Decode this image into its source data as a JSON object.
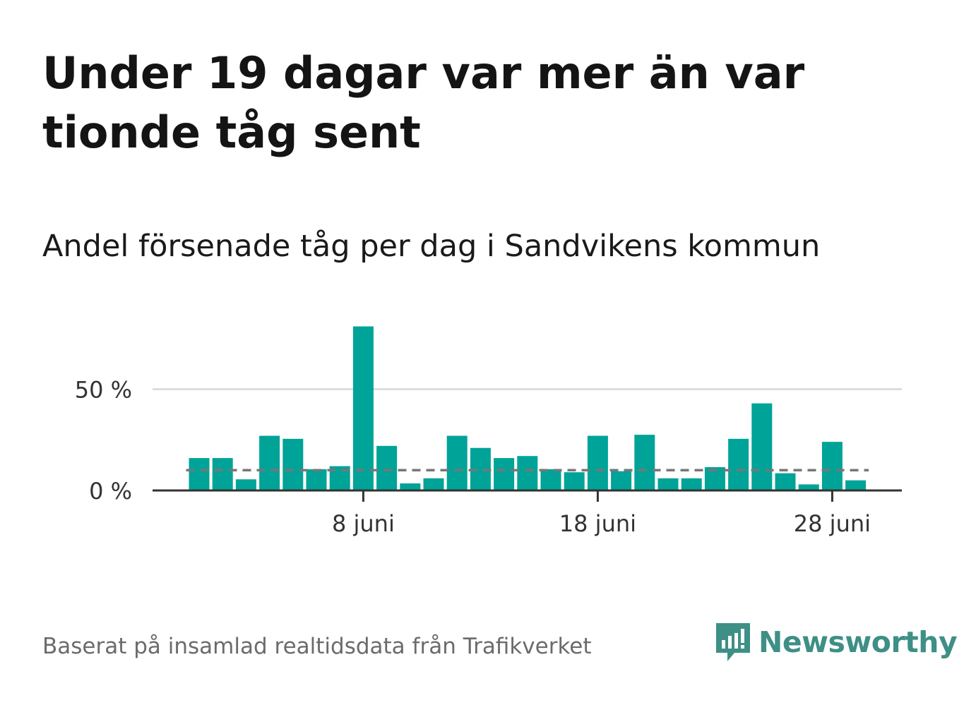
{
  "chart_data": {
    "type": "bar",
    "title": "Under 19 dagar var mer än var tionde tåg sent",
    "subtitle": "Andel försenade tåg per dag i Sandvikens kommun",
    "categories": [
      "1 juni",
      "2 juni",
      "3 juni",
      "4 juni",
      "5 juni",
      "6 juni",
      "7 juni",
      "8 juni",
      "9 juni",
      "10 juni",
      "11 juni",
      "12 juni",
      "13 juni",
      "14 juni",
      "15 juni",
      "16 juni",
      "17 juni",
      "18 juni",
      "19 juni",
      "20 juni",
      "21 juni",
      "22 juni",
      "23 juni",
      "24 juni",
      "25 juni",
      "26 juni",
      "27 juni",
      "28 juni",
      "29 juni"
    ],
    "values": [
      16,
      16,
      5.5,
      27,
      25.5,
      10.5,
      12,
      81,
      22,
      3.5,
      6,
      27,
      21,
      16,
      17,
      10.5,
      9,
      27,
      9.5,
      27.5,
      6,
      6,
      11.5,
      25.5,
      43,
      8.5,
      3,
      24,
      5
    ],
    "xticks": [
      "8 juni",
      "18 juni",
      "28 juni"
    ],
    "yticks": [
      {
        "value": 0,
        "label": "0 %"
      },
      {
        "value": 50,
        "label": "50 %"
      }
    ],
    "reference_line": 10,
    "ylim": [
      0,
      81
    ],
    "xlabel": "",
    "ylabel": "",
    "grid": true,
    "bar_color": "#00a398",
    "reference_color": "#777777"
  },
  "footer": {
    "source": "Baserat på insamlad realtidsdata från Trafikverket",
    "logo_text": "Newsworthy",
    "logo_icon": "newsworthy-chart-bubble-icon",
    "logo_color": "#3e8f86"
  }
}
